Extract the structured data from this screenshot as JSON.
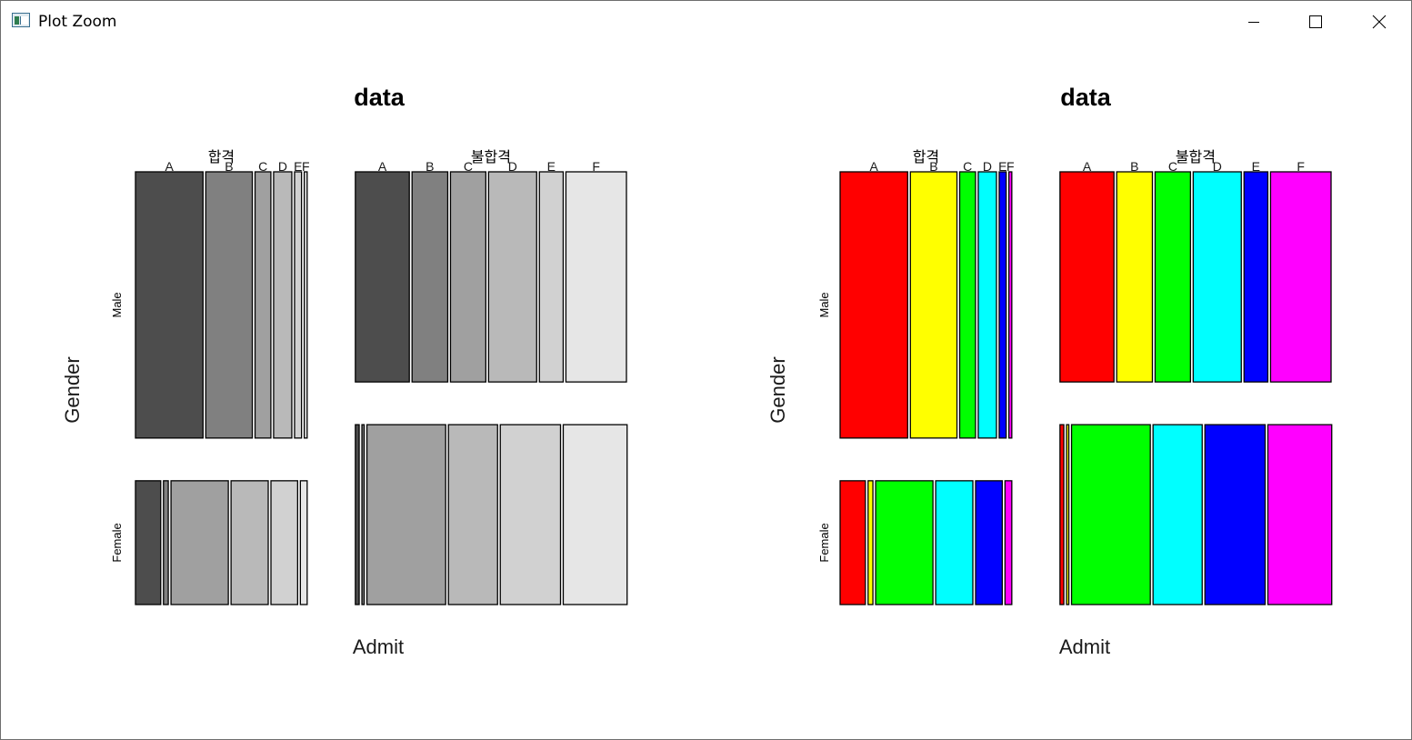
{
  "window": {
    "title": "Plot Zoom",
    "icon": "plot-window-icon",
    "controls": [
      "minimize-icon",
      "maximize-icon",
      "close-icon"
    ]
  },
  "chart_data": [
    {
      "type": "mosaic",
      "title": "data",
      "xlabel": "Admit",
      "ylabel": "Gender",
      "admit_levels": [
        "합격",
        "불합격"
      ],
      "gender_levels": [
        "Male",
        "Female"
      ],
      "categories": [
        "A",
        "B",
        "C",
        "D",
        "E",
        "F"
      ],
      "fill_colors": [
        "#4d4d4d",
        "#808080",
        "#a0a0a0",
        "#b9b9b9",
        "#d1d1d1",
        "#e6e6e6"
      ],
      "counts": {
        "합격": {
          "Male": [
            512,
            353,
            120,
            138,
            53,
            22
          ],
          "Female": [
            89,
            17,
            202,
            131,
            94,
            24
          ]
        },
        "불합격": {
          "Male": [
            313,
            207,
            205,
            279,
            138,
            351
          ],
          "Female": [
            19,
            8,
            391,
            244,
            299,
            317
          ]
        }
      }
    },
    {
      "type": "mosaic",
      "title": "data",
      "xlabel": "Admit",
      "ylabel": "Gender",
      "admit_levels": [
        "합격",
        "불합격"
      ],
      "gender_levels": [
        "Male",
        "Female"
      ],
      "categories": [
        "A",
        "B",
        "C",
        "D",
        "E",
        "F"
      ],
      "fill_colors": [
        "#ff0000",
        "#ffff00",
        "#00ff00",
        "#00ffff",
        "#0000ff",
        "#ff00ff"
      ],
      "counts": {
        "합격": {
          "Male": [
            512,
            353,
            120,
            138,
            53,
            22
          ],
          "Female": [
            89,
            17,
            202,
            131,
            94,
            24
          ]
        },
        "불합격": {
          "Male": [
            313,
            207,
            205,
            279,
            138,
            351
          ],
          "Female": [
            19,
            8,
            391,
            244,
            299,
            317
          ]
        }
      }
    }
  ]
}
